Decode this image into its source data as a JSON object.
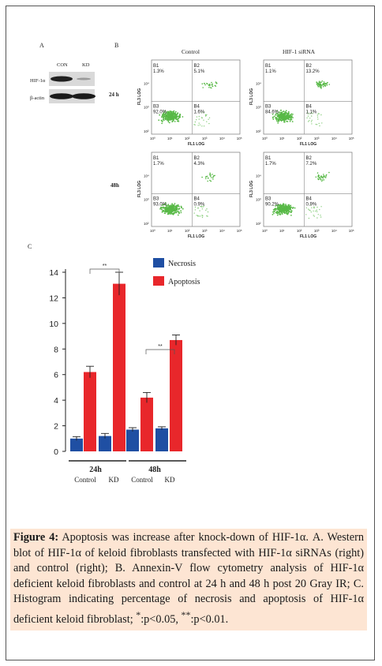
{
  "panel_a": {
    "label": "A",
    "lanes": [
      "CON",
      "KD"
    ],
    "rows": [
      "HIF-1α",
      "β-actin"
    ]
  },
  "panel_b": {
    "label": "B",
    "columns": [
      "Control",
      "HIF-1 siRNA"
    ],
    "rows": [
      "24 h",
      "48h"
    ],
    "axis_x": "FL1 LOG",
    "axis_y": "FL3 LOG",
    "ticks": [
      "10⁰",
      "10¹",
      "10²",
      "10³",
      "10⁴",
      "10⁵"
    ],
    "quadrants": [
      "B1",
      "B2",
      "B3",
      "B4"
    ],
    "plots": [
      {
        "row": "24 h",
        "col": "Control",
        "values": [
          "1.3%",
          "5.1%",
          "92.0%",
          "1.6%"
        ]
      },
      {
        "row": "24 h",
        "col": "HIF-1 siRNA",
        "values": [
          "1.1%",
          "13.2%",
          "84.6%",
          "1.1%"
        ]
      },
      {
        "row": "48h",
        "col": "Control",
        "values": [
          "1.7%",
          "4.3%",
          "93.0%",
          "0.9%"
        ]
      },
      {
        "row": "48h",
        "col": "HIF-1 siRNA",
        "values": [
          "1.7%",
          "7.2%",
          "90.2%",
          "0.9%"
        ]
      }
    ]
  },
  "panel_c_label": "C",
  "colors": {
    "necrosis": "#1f4fa3",
    "apoptosis": "#e8272b",
    "dots": "#58b947"
  },
  "chart_data": {
    "type": "bar",
    "legend": [
      "Necrosis",
      "Apoptosis"
    ],
    "groups": [
      "24h",
      "48h"
    ],
    "categories": [
      "Control",
      "KD",
      "Control",
      "KD"
    ],
    "series": [
      {
        "name": "Necrosis",
        "values": [
          1.0,
          1.2,
          1.7,
          1.8
        ],
        "errors": [
          0.15,
          0.2,
          0.15,
          0.12
        ]
      },
      {
        "name": "Apoptosis",
        "values": [
          6.2,
          13.1,
          4.2,
          8.7
        ],
        "errors": [
          0.45,
          0.9,
          0.4,
          0.4
        ]
      }
    ],
    "yticks": [
      "0",
      "2",
      "4",
      "6",
      "8",
      "10",
      "12",
      "14"
    ],
    "ylim": [
      0,
      14
    ],
    "significance": [
      "**",
      "**"
    ]
  },
  "caption": {
    "title": "Figure 4:",
    "text": " Apoptosis was increase after knock-down of HIF-1α. A. Western blot of HIF-1α of keloid fibroblasts transfected with HIF-1α siRNAs (right) and control (right); B. Annexin-V flow cytometry analysis of HIF-1α deficient keloid fibroblasts and control at 24 h and 48 h post 20 Gray IR; C. Histogram indicating percentage of necrosis and apoptosis of HIF-1α deficient keloid fibroblast; ",
    "sig1_mark": "*",
    "sig1_text": ":p<0.05, ",
    "sig2_mark": "**",
    "sig2_text": ":p<0.01."
  }
}
